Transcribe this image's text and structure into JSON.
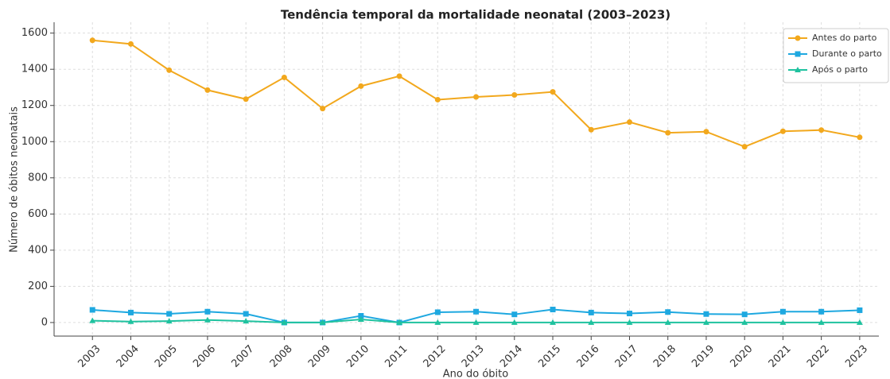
{
  "chart_data": {
    "type": "line",
    "title": "Tendência temporal da mortalidade neonatal (2003–2023)",
    "xlabel": "Ano do óbito",
    "ylabel": "Número de óbitos neonatais",
    "x": [
      2003,
      2004,
      2005,
      2006,
      2007,
      2008,
      2009,
      2010,
      2011,
      2012,
      2013,
      2014,
      2015,
      2016,
      2017,
      2018,
      2019,
      2020,
      2021,
      2022,
      2023
    ],
    "series": [
      {
        "name": "Antes do parto",
        "color": "#f2a81d",
        "marker": "circle",
        "values": [
          1560,
          1540,
          1395,
          1285,
          1235,
          1355,
          1183,
          1307,
          1362,
          1232,
          1247,
          1258,
          1275,
          1066,
          1108,
          1049,
          1055,
          972,
          1057,
          1064,
          1024
        ]
      },
      {
        "name": "Durante o parto",
        "color": "#1ea8e0",
        "marker": "square",
        "values": [
          70,
          55,
          48,
          60,
          48,
          0,
          0,
          37,
          0,
          57,
          60,
          45,
          72,
          55,
          50,
          58,
          47,
          45,
          60,
          60,
          68
        ]
      },
      {
        "name": "Após o parto",
        "color": "#1fc29f",
        "marker": "triangle",
        "values": [
          10,
          5,
          8,
          14,
          8,
          0,
          0,
          17,
          0,
          0,
          0,
          0,
          0,
          0,
          0,
          0,
          0,
          0,
          0,
          0,
          0
        ]
      }
    ],
    "xlim": [
      2002,
      2023.5
    ],
    "xticks": [
      2003,
      2004,
      2005,
      2006,
      2007,
      2008,
      2009,
      2010,
      2011,
      2012,
      2013,
      2014,
      2015,
      2016,
      2017,
      2018,
      2019,
      2020,
      2021,
      2022,
      2023
    ],
    "ylim": [
      -75,
      1660
    ],
    "yticks": [
      0,
      200,
      400,
      600,
      800,
      1000,
      1200,
      1400,
      1600
    ],
    "grid": true,
    "legend": "upper right"
  }
}
